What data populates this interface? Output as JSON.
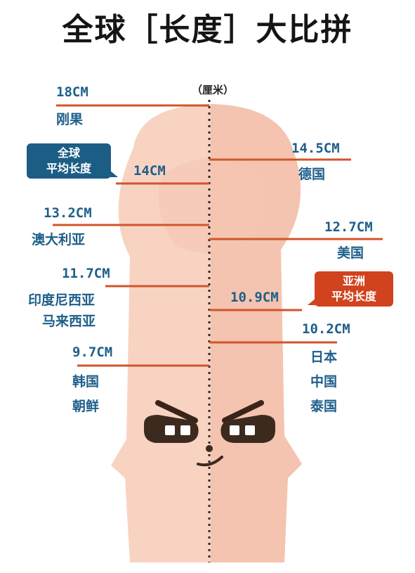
{
  "title": "全球［长度］大比拼",
  "unit": "（厘米）",
  "colors": {
    "label_blue": "#1e5f8a",
    "badge_blue": "#1c5d86",
    "badge_red": "#d0431e",
    "line_orange": "#d2542a",
    "figure_light": "#f8d3c2",
    "figure_dark": "#f2b9a2"
  },
  "labels": {
    "congo": {
      "value": "18CM",
      "country": "刚果"
    },
    "global": {
      "value": "14CM",
      "badge_line1": "全球",
      "badge_line2": "平均长度"
    },
    "germany": {
      "value": "14.5CM",
      "country": "德国"
    },
    "australia": {
      "value": "13.2CM",
      "country": "澳大利亚"
    },
    "usa": {
      "value": "12.7CM",
      "country": "美国"
    },
    "indonesia": {
      "value": "11.7CM",
      "country_line1": "印度尼西亚",
      "country_line2": "马来西亚"
    },
    "asia": {
      "value": "10.9CM",
      "badge_line1": "亚洲",
      "badge_line2": "平均长度"
    },
    "japan": {
      "value": "10.2CM",
      "country_line1": "日本",
      "country_line2": "中国",
      "country_line3": "泰国"
    },
    "korea": {
      "value": "9.7CM",
      "country_line1": "韩国",
      "country_line2": "朝鲜"
    }
  },
  "icons": {
    "figure": "cartoon-figure-illustration",
    "face": "angry-face-icon"
  }
}
